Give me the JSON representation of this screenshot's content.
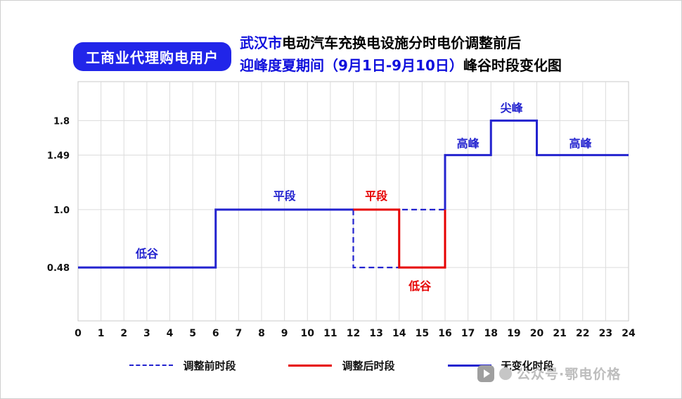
{
  "header": {
    "badge": "工商业代理购电用户",
    "title_line1_blue": "武汉市",
    "title_line1_black": "电动汽车充换电设施分时电价调整前后",
    "title_line2_blue": "迎峰度夏期间（9月1日-9月10日）",
    "title_line2_black": "峰谷时段变化图"
  },
  "colors": {
    "badge_bg": "#2125e9",
    "title_blue": "#1010dd",
    "line_blue": "#2323cf",
    "line_red": "#e60000",
    "grid": "#dcdcdc",
    "plot_border": "#c8c8c8"
  },
  "chart_data": {
    "type": "line",
    "subtype": "step",
    "title": "武汉市电动汽车充换电设施分时电价调整前后 迎峰度夏期间（9月1日-9月10日）峰谷时段变化图",
    "xlabel": "",
    "ylabel": "",
    "xlim": [
      0,
      24
    ],
    "ylim": [
      0,
      2.15
    ],
    "x_ticks": [
      0,
      1,
      2,
      3,
      4,
      5,
      6,
      7,
      8,
      9,
      10,
      11,
      12,
      13,
      14,
      15,
      16,
      17,
      18,
      19,
      20,
      21,
      22,
      23,
      24
    ],
    "y_ticks": [
      0.48,
      1.0,
      1.49,
      1.8
    ],
    "y_tick_labels": [
      "0.48",
      "1.0",
      "1.49",
      "1.8"
    ],
    "grid": true,
    "legend_position": "bottom",
    "series": [
      {
        "name": "无变化时段-left",
        "color": "#2323cf",
        "dash": false,
        "points": [
          [
            0,
            0.48
          ],
          [
            6,
            0.48
          ],
          [
            6,
            1.0
          ],
          [
            12,
            1.0
          ]
        ]
      },
      {
        "name": "调整前时段",
        "color": "#2323cf",
        "dash": true,
        "points": [
          [
            12,
            1.0
          ],
          [
            12,
            0.48
          ],
          [
            14,
            0.48
          ],
          [
            14,
            1.0
          ],
          [
            16,
            1.0
          ]
        ]
      },
      {
        "name": "调整后时段",
        "color": "#e60000",
        "dash": false,
        "points": [
          [
            12,
            1.0
          ],
          [
            14,
            1.0
          ],
          [
            14,
            0.48
          ],
          [
            16,
            0.48
          ],
          [
            16,
            1.0
          ]
        ]
      },
      {
        "name": "无变化时段-right",
        "color": "#2323cf",
        "dash": false,
        "points": [
          [
            16,
            1.0
          ],
          [
            16,
            1.49
          ],
          [
            18,
            1.49
          ],
          [
            18,
            1.8
          ],
          [
            20,
            1.8
          ],
          [
            20,
            1.49
          ],
          [
            24,
            1.49
          ]
        ]
      }
    ],
    "annotations": [
      {
        "text": "低谷",
        "x": 3.0,
        "y": 0.6,
        "color": "#2323cf"
      },
      {
        "text": "平段",
        "x": 9.0,
        "y": 1.12,
        "color": "#2323cf"
      },
      {
        "text": "平段",
        "x": 13.0,
        "y": 1.12,
        "color": "#e60000"
      },
      {
        "text": "低谷",
        "x": 14.9,
        "y": 0.31,
        "color": "#e60000"
      },
      {
        "text": "高峰",
        "x": 17.0,
        "y": 1.59,
        "color": "#2323cf"
      },
      {
        "text": "尖峰",
        "x": 18.9,
        "y": 1.91,
        "color": "#2323cf"
      },
      {
        "text": "高峰",
        "x": 21.9,
        "y": 1.59,
        "color": "#2323cf"
      }
    ]
  },
  "legend": {
    "items": [
      {
        "label": "调整前时段",
        "color": "#2323cf",
        "dash": true
      },
      {
        "label": "调整后时段",
        "color": "#e60000",
        "dash": false
      },
      {
        "label": "无变化时段",
        "color": "#2323cf",
        "dash": false
      }
    ]
  },
  "watermark": {
    "text": "公众号·鄂电价格"
  }
}
